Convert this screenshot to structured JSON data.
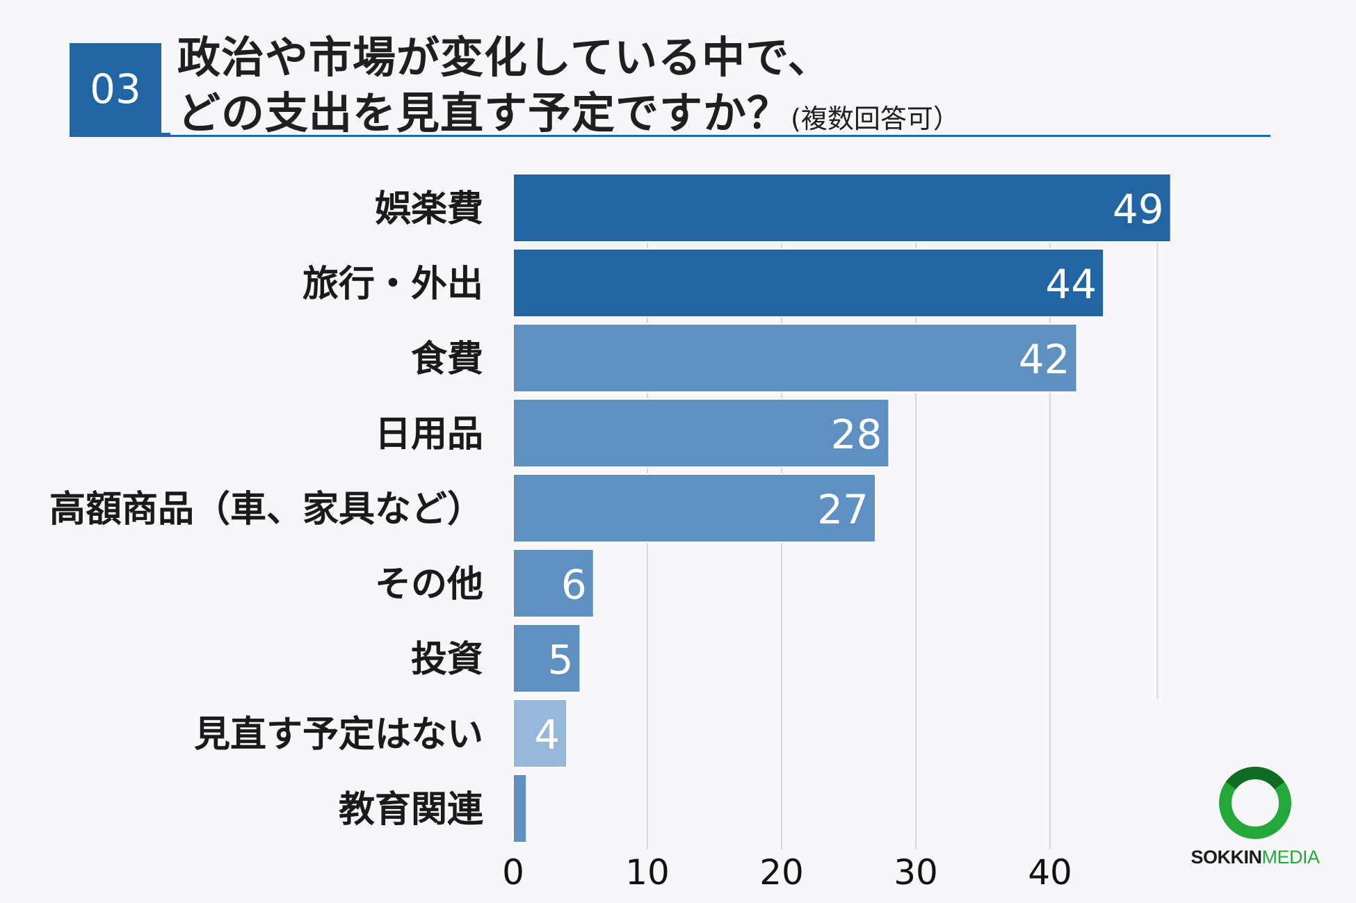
{
  "header": {
    "question_number": "03",
    "title_line1": "政治や市場が変化している中で、",
    "title_line2": "どの支出を見直す予定ですか？",
    "title_note": "(複数回答可）"
  },
  "colors": {
    "accent": "#2265a5",
    "bar_dark": "#2265a5",
    "bar_mid": "#5e91c2",
    "bar_light": "#98b8da",
    "grid": "#d8d8dc",
    "logo_green": "#25a83a"
  },
  "chart_data": {
    "type": "bar",
    "orientation": "horizontal",
    "categories": [
      "娯楽費",
      "旅行・外出",
      "食費",
      "日用品",
      "高額商品（車、家具など）",
      "その他",
      "投資",
      "見直す予定はない",
      "教育関連"
    ],
    "values": [
      49,
      44,
      42,
      28,
      27,
      6,
      5,
      4,
      1
    ],
    "data_labels": [
      "49",
      "44",
      "42",
      "28",
      "27",
      "6",
      "5",
      "4",
      ""
    ],
    "bar_shades": [
      "dark",
      "dark",
      "mid",
      "mid",
      "mid",
      "mid",
      "mid",
      "light",
      "mid"
    ],
    "xlim": [
      0,
      50
    ],
    "xticks": [
      0,
      10,
      20,
      30,
      40
    ],
    "xlabel": "",
    "ylabel": "",
    "grid": true
  },
  "logo": {
    "text_part1": "SOKKIN",
    "text_part2": "MEDIA"
  }
}
